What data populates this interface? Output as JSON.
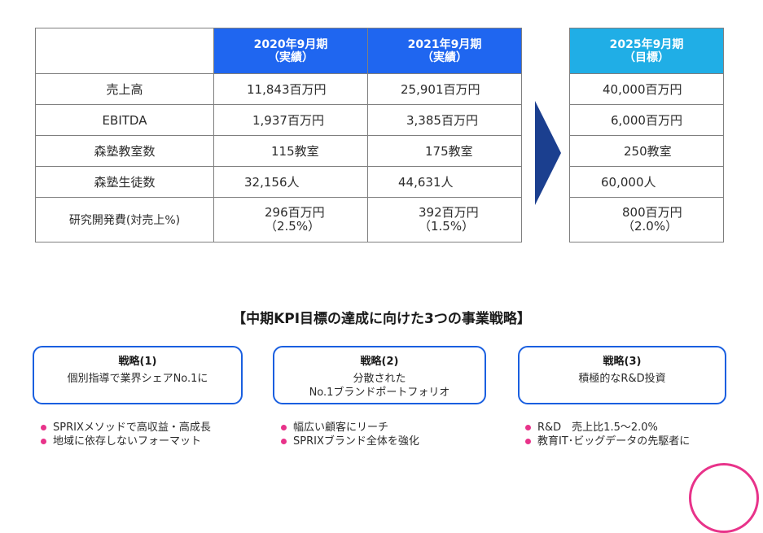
{
  "actual_table": {
    "headers": [
      {
        "line1": "2020年9月期",
        "line2": "（実績）"
      },
      {
        "line1": "2021年9月期",
        "line2": "（実績）"
      }
    ],
    "rows": [
      {
        "label": "売上高",
        "v2020": "11,843百万円",
        "v2021": "25,901百万円"
      },
      {
        "label": "EBITDA",
        "v2020": "1,937百万円",
        "v2021": "3,385百万円"
      },
      {
        "label": "森塾教室数",
        "v2020": "115教室",
        "v2021": "175教室"
      },
      {
        "label": "森塾生徒数",
        "v2020": "32,156人",
        "v2021": "44,631人"
      },
      {
        "label": "研究開発費(対売上%)",
        "v2020": "296百万円",
        "v2020_sub": "（2.5%）",
        "v2021": "392百万円",
        "v2021_sub": "（1.5%）"
      }
    ]
  },
  "target_table": {
    "header": {
      "line1": "2025年9月期",
      "line2": "（目標）"
    },
    "values": [
      "40,000百万円",
      "6,000百万円",
      "250教室",
      "60,000人",
      "800百万円"
    ],
    "rd_sub": "（2.0%）"
  },
  "section_title": "【中期KPI目標の達成に向けた3つの事業戦略】",
  "strategies": [
    {
      "title": "戦略(1)",
      "body1": "個別指導で業界シェアNo.1に",
      "body2": "",
      "bullets": [
        "SPRIXメソッドで高収益・高成長",
        "地域に依存しないフォーマット"
      ]
    },
    {
      "title": "戦略(2)",
      "body1": "分散された",
      "body2": "No.1ブランドポートフォリオ",
      "bullets": [
        "幅広い顧客にリーチ",
        "SPRIXブランド全体を強化"
      ]
    },
    {
      "title": "戦略(3)",
      "body1": "積極的なR&D投資",
      "body2": "",
      "bullets": [
        "R&D　売上比1.5〜2.0%",
        "教育IT･ビッグデータの先駆者に"
      ]
    }
  ],
  "colors": {
    "header_actual": "#1f66f0",
    "header_target": "#20aee6",
    "arrow": "#1b3f8f",
    "bullet": "#e8338a",
    "box_border": "#1a5fe0"
  }
}
